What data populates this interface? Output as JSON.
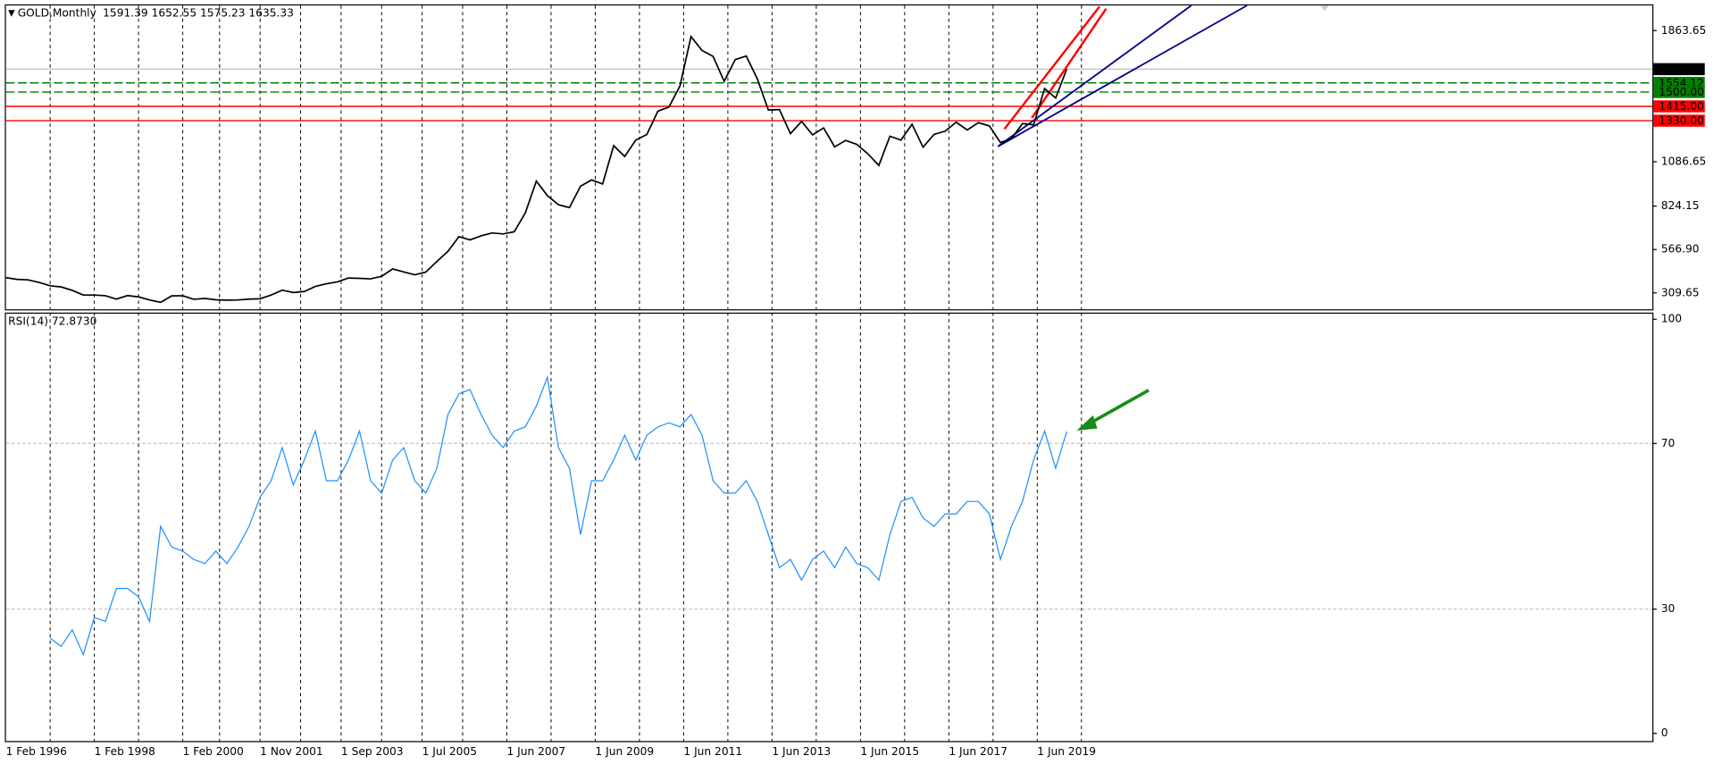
{
  "chart_data": {
    "type": "line",
    "header_ohlc": [
      1591.39,
      1652.55,
      1575.23,
      1635.33
    ],
    "rsi_header": {
      "value": 72.873,
      "label": "72.8730"
    },
    "x": [
      "1996-02-01",
      "1996-05-01",
      "1996-08-01",
      "1996-11-01",
      "1997-02-01",
      "1997-05-01",
      "1997-08-01",
      "1997-11-01",
      "1998-02-01",
      "1998-05-01",
      "1998-08-01",
      "1998-11-01",
      "1999-02-01",
      "1999-05-01",
      "1999-08-01",
      "1999-11-01",
      "2000-02-01",
      "2000-05-01",
      "2000-08-01",
      "2000-11-01",
      "2001-02-01",
      "2001-05-01",
      "2001-08-01",
      "2001-11-01",
      "2002-02-01",
      "2002-05-01",
      "2002-08-01",
      "2002-11-01",
      "2003-02-01",
      "2003-05-01",
      "2003-08-01",
      "2003-11-01",
      "2004-02-01",
      "2004-05-01",
      "2004-08-01",
      "2004-11-01",
      "2005-02-01",
      "2005-05-01",
      "2005-08-01",
      "2005-11-01",
      "2006-02-01",
      "2006-05-01",
      "2006-08-01",
      "2006-11-01",
      "2007-02-01",
      "2007-05-01",
      "2007-08-01",
      "2007-11-01",
      "2008-02-01",
      "2008-05-01",
      "2008-08-01",
      "2008-11-01",
      "2009-02-01",
      "2009-05-01",
      "2009-08-01",
      "2009-11-01",
      "2010-02-01",
      "2010-05-01",
      "2010-08-01",
      "2010-11-01",
      "2011-02-01",
      "2011-05-01",
      "2011-08-01",
      "2011-11-01",
      "2012-02-01",
      "2012-05-01",
      "2012-08-01",
      "2012-11-01",
      "2013-02-01",
      "2013-05-01",
      "2013-08-01",
      "2013-11-01",
      "2014-02-01",
      "2014-05-01",
      "2014-08-01",
      "2014-11-01",
      "2015-02-01",
      "2015-05-01",
      "2015-08-01",
      "2015-11-01",
      "2016-02-01",
      "2016-05-01",
      "2016-08-01",
      "2016-11-01",
      "2017-02-01",
      "2017-05-01",
      "2017-08-01",
      "2017-11-01",
      "2018-02-01",
      "2018-05-01",
      "2018-08-01",
      "2018-11-01",
      "2019-02-01",
      "2019-05-01",
      "2019-08-01",
      "2019-11-01",
      "2020-02-01"
    ],
    "series": [
      {
        "name": "GOLD,Monthly",
        "color": "#000000",
        "values": [
          400,
          390,
          387,
          372,
          352,
          345,
          325,
          297,
          297,
          293,
          273,
          294,
          286,
          268,
          254,
          292,
          293,
          272,
          277,
          269,
          267,
          268,
          273,
          275,
          297,
          326,
          312,
          318,
          348,
          364,
          375,
          398,
          396,
          393,
          408,
          452,
          434,
          417,
          433,
          496,
          556,
          643,
          624,
          648,
          665,
          659,
          672,
          783,
          972,
          886,
          832,
          815,
          942,
          979,
          955,
          1182,
          1118,
          1215,
          1248,
          1386,
          1411,
          1536,
          1828,
          1746,
          1711,
          1563,
          1692,
          1713,
          1578,
          1393,
          1396,
          1253,
          1326,
          1246,
          1287,
          1175,
          1213,
          1190,
          1134,
          1065,
          1238,
          1215,
          1309,
          1173,
          1249,
          1268,
          1321,
          1275,
          1318,
          1299,
          1201,
          1223,
          1313,
          1305,
          1520,
          1464,
          1635.33
        ]
      },
      {
        "name": "RSI(14)",
        "color": "#1e90ff",
        "axis": "y2",
        "values": [
          null,
          null,
          null,
          null,
          23,
          21,
          25,
          19,
          28,
          27,
          35,
          35,
          33,
          27,
          50,
          45,
          44,
          42,
          41,
          44,
          41,
          45,
          50,
          57,
          61,
          69,
          60,
          66,
          73,
          61,
          61,
          66,
          73,
          61,
          58,
          66,
          69,
          61,
          58,
          64,
          77,
          82,
          83,
          77,
          72,
          69,
          73,
          74,
          79,
          86,
          69,
          64,
          48,
          61,
          61,
          66,
          72,
          66,
          72,
          74,
          75,
          74,
          77,
          72,
          61,
          58,
          58,
          61,
          56,
          48,
          40,
          42,
          37,
          42,
          44,
          40,
          45,
          41,
          40,
          37,
          48,
          56,
          57,
          52,
          50,
          53,
          53,
          56,
          56,
          53,
          42,
          50,
          56,
          66,
          73,
          64,
          72.873
        ]
      }
    ],
    "xlim": [
      "1996-02-01",
      "2033-05-01"
    ],
    "xticks": [
      {
        "value": "1996-02-01",
        "label": "1 Feb 1996"
      },
      {
        "value": "1997-02-01",
        "label": null
      },
      {
        "value": "1998-02-01",
        "label": "1 Feb 1998"
      },
      {
        "value": "1999-02-01",
        "label": null
      },
      {
        "value": "2000-02-01",
        "label": "1 Feb 2000"
      },
      {
        "value": "2000-12-01",
        "label": null
      },
      {
        "value": "2001-11-01",
        "label": "1 Nov 2001"
      },
      {
        "value": "2002-10-01",
        "label": null
      },
      {
        "value": "2003-09-01",
        "label": "1 Sep 2003"
      },
      {
        "value": "2004-08-01",
        "label": null
      },
      {
        "value": "2005-07-01",
        "label": "1 Jul 2005"
      },
      {
        "value": "2006-06-01",
        "label": null
      },
      {
        "value": "2007-06-01",
        "label": "1 Jun 2007"
      },
      {
        "value": "2008-06-01",
        "label": null
      },
      {
        "value": "2009-06-01",
        "label": "1 Jun 2009"
      },
      {
        "value": "2010-06-01",
        "label": null
      },
      {
        "value": "2011-06-01",
        "label": "1 Jun 2011"
      },
      {
        "value": "2012-06-01",
        "label": null
      },
      {
        "value": "2013-06-01",
        "label": "1 Jun 2013"
      },
      {
        "value": "2014-06-01",
        "label": null
      },
      {
        "value": "2015-06-01",
        "label": "1 Jun 2015"
      },
      {
        "value": "2016-06-01",
        "label": null
      },
      {
        "value": "2017-06-01",
        "label": "1 Jun 2017"
      },
      {
        "value": "2018-06-01",
        "label": null
      },
      {
        "value": "2019-06-01",
        "label": "1 Jun 2019"
      },
      {
        "value": "2020-06-01",
        "label": null
      }
    ],
    "grid": true,
    "ylim": [
      212.5,
      2012.6
    ],
    "yticks": [
      309.65,
      {
        "value": 566.9,
        "label": "566.90"
      },
      824.15,
      1086.65,
      1863.65
    ],
    "levels": [
      {
        "value": 1635.33,
        "color": "#000000",
        "line": "#c0c0c0"
      },
      {
        "value": 1554.12,
        "color": "#008000",
        "line": "#008000"
      },
      {
        "value": 1500,
        "label": "1500.00",
        "color": "#008000",
        "line": "#008000"
      },
      {
        "value": 1415,
        "label": "1415.00",
        "color": "#ff0000",
        "line": "#ff0000"
      },
      {
        "value": 1330,
        "label": "1330.00",
        "color": "#ff0000",
        "line": "#ff0000"
      }
    ],
    "y2lim": [
      -1.85,
      101.6
    ],
    "y2ticks": [
      0,
      30,
      70,
      100
    ],
    "y2levels": [
      30,
      70
    ]
  }
}
